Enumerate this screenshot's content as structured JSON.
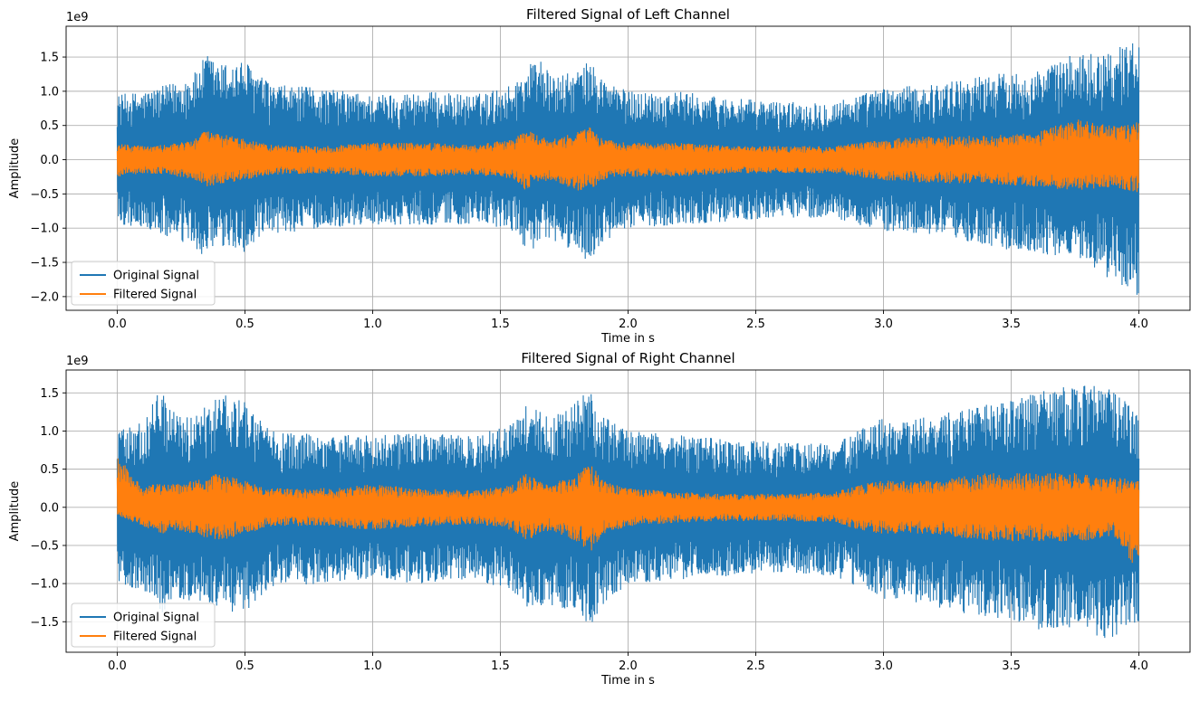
{
  "chart_data": [
    {
      "type": "line",
      "title": "Filtered Signal of Left Channel",
      "xlabel": "Time in s",
      "ylabel": "Amplitude",
      "y_offset_label": "1e9",
      "xlim": [
        -0.2,
        4.2
      ],
      "ylim": [
        -2.2,
        1.95
      ],
      "x_ticks": [
        0.0,
        0.5,
        1.0,
        1.5,
        2.0,
        2.5,
        3.0,
        3.5,
        4.0
      ],
      "x_tick_labels": [
        "0.0",
        "0.5",
        "1.0",
        "1.5",
        "2.0",
        "2.5",
        "3.0",
        "3.5",
        "4.0"
      ],
      "y_ticks": [
        1.5,
        1.0,
        0.5,
        0.0,
        -0.5,
        -1.0,
        -1.5,
        -2.0
      ],
      "y_tick_labels": [
        "1.5",
        "1.0",
        "0.5",
        "0.0",
        "−0.5",
        "−1.0",
        "−1.5",
        "−2.0"
      ],
      "grid": true,
      "legend_position": "lower-left",
      "series": [
        {
          "name": "Original Signal",
          "color": "#1f77b4",
          "x": [
            0.0,
            0.1,
            0.2,
            0.3,
            0.35,
            0.4,
            0.5,
            0.6,
            0.8,
            1.0,
            1.2,
            1.4,
            1.55,
            1.6,
            1.65,
            1.7,
            1.8,
            1.85,
            1.9,
            2.0,
            2.2,
            2.4,
            2.6,
            2.8,
            2.9,
            3.0,
            3.2,
            3.4,
            3.6,
            3.75,
            3.9,
            4.0
          ],
          "upper": [
            0.95,
            1.0,
            1.1,
            1.25,
            1.55,
            1.4,
            1.45,
            1.1,
            1.05,
            0.95,
            1.0,
            0.95,
            1.1,
            1.35,
            1.55,
            1.2,
            1.3,
            1.45,
            1.2,
            1.0,
            1.0,
            0.9,
            0.85,
            0.85,
            0.95,
            1.05,
            1.1,
            1.25,
            1.3,
            1.55,
            1.6,
            1.8
          ],
          "lower": [
            -0.95,
            -1.0,
            -1.15,
            -1.3,
            -1.45,
            -1.3,
            -1.35,
            -1.1,
            -1.0,
            -0.95,
            -0.95,
            -0.95,
            -1.05,
            -1.3,
            -1.3,
            -1.2,
            -1.35,
            -1.5,
            -1.25,
            -1.0,
            -0.95,
            -0.9,
            -0.85,
            -0.85,
            -0.95,
            -1.05,
            -1.1,
            -1.25,
            -1.4,
            -1.4,
            -1.8,
            -2.0
          ]
        },
        {
          "name": "Filtered Signal",
          "color": "#ff7f0e",
          "x": [
            0.0,
            0.1,
            0.2,
            0.3,
            0.35,
            0.4,
            0.5,
            0.6,
            0.8,
            1.0,
            1.2,
            1.4,
            1.55,
            1.6,
            1.65,
            1.7,
            1.8,
            1.85,
            1.9,
            2.0,
            2.2,
            2.4,
            2.6,
            2.8,
            2.9,
            3.0,
            3.2,
            3.4,
            3.6,
            3.75,
            3.9,
            4.0
          ],
          "upper": [
            0.25,
            0.2,
            0.22,
            0.3,
            0.45,
            0.4,
            0.3,
            0.22,
            0.2,
            0.25,
            0.25,
            0.22,
            0.3,
            0.45,
            0.35,
            0.3,
            0.4,
            0.48,
            0.3,
            0.25,
            0.25,
            0.2,
            0.2,
            0.2,
            0.25,
            0.3,
            0.35,
            0.35,
            0.4,
            0.6,
            0.5,
            0.55
          ],
          "lower": [
            -0.25,
            -0.2,
            -0.22,
            -0.3,
            -0.4,
            -0.35,
            -0.3,
            -0.22,
            -0.2,
            -0.25,
            -0.25,
            -0.22,
            -0.3,
            -0.45,
            -0.35,
            -0.3,
            -0.45,
            -0.45,
            -0.3,
            -0.25,
            -0.25,
            -0.2,
            -0.2,
            -0.2,
            -0.25,
            -0.3,
            -0.35,
            -0.35,
            -0.4,
            -0.45,
            -0.4,
            -0.5
          ]
        }
      ]
    },
    {
      "type": "line",
      "title": "Filtered Signal of Right Channel",
      "xlabel": "Time in s",
      "ylabel": "Amplitude",
      "y_offset_label": "1e9",
      "xlim": [
        -0.2,
        4.2
      ],
      "ylim": [
        -1.9,
        1.8
      ],
      "x_ticks": [
        0.0,
        0.5,
        1.0,
        1.5,
        2.0,
        2.5,
        3.0,
        3.5,
        4.0
      ],
      "x_tick_labels": [
        "0.0",
        "0.5",
        "1.0",
        "1.5",
        "2.0",
        "2.5",
        "3.0",
        "3.5",
        "4.0"
      ],
      "y_ticks": [
        1.5,
        1.0,
        0.5,
        0.0,
        -0.5,
        -1.0,
        -1.5
      ],
      "y_tick_labels": [
        "1.5",
        "1.0",
        "0.5",
        "0.0",
        "−0.5",
        "−1.0",
        "−1.5"
      ],
      "grid": true,
      "legend_position": "lower-left",
      "series": [
        {
          "name": "Original Signal",
          "color": "#1f77b4",
          "x": [
            0.0,
            0.1,
            0.18,
            0.2,
            0.3,
            0.4,
            0.5,
            0.6,
            0.8,
            1.0,
            1.2,
            1.4,
            1.55,
            1.6,
            1.65,
            1.7,
            1.8,
            1.85,
            1.9,
            2.0,
            2.2,
            2.4,
            2.6,
            2.8,
            2.9,
            3.0,
            3.2,
            3.4,
            3.6,
            3.75,
            3.9,
            4.0
          ],
          "upper": [
            1.15,
            1.1,
            1.65,
            1.3,
            1.2,
            1.5,
            1.4,
            1.0,
            0.95,
            0.95,
            1.0,
            0.95,
            1.1,
            1.35,
            1.3,
            1.2,
            1.4,
            1.55,
            1.2,
            1.0,
            0.95,
            0.9,
            0.85,
            0.85,
            1.0,
            1.2,
            1.2,
            1.35,
            1.5,
            1.65,
            1.55,
            1.2
          ],
          "lower": [
            -1.0,
            -1.1,
            -1.4,
            -1.3,
            -1.2,
            -1.35,
            -1.4,
            -1.05,
            -1.0,
            -0.95,
            -1.0,
            -0.95,
            -1.1,
            -1.35,
            -1.3,
            -1.3,
            -1.45,
            -1.6,
            -1.3,
            -1.0,
            -0.95,
            -0.9,
            -0.85,
            -0.9,
            -1.05,
            -1.2,
            -1.3,
            -1.45,
            -1.6,
            -1.6,
            -1.75,
            -1.5
          ]
        },
        {
          "name": "Filtered Signal",
          "color": "#ff7f0e",
          "x": [
            0.0,
            0.1,
            0.18,
            0.2,
            0.3,
            0.4,
            0.5,
            0.6,
            0.8,
            1.0,
            1.2,
            1.4,
            1.55,
            1.6,
            1.65,
            1.7,
            1.8,
            1.85,
            1.9,
            2.0,
            2.2,
            2.4,
            2.6,
            2.8,
            2.9,
            3.0,
            3.2,
            3.4,
            3.6,
            3.75,
            3.9,
            4.0
          ],
          "upper": [
            0.7,
            0.25,
            0.35,
            0.3,
            0.35,
            0.45,
            0.35,
            0.25,
            0.25,
            0.3,
            0.25,
            0.22,
            0.3,
            0.45,
            0.35,
            0.3,
            0.45,
            0.6,
            0.35,
            0.25,
            0.2,
            0.18,
            0.18,
            0.2,
            0.3,
            0.35,
            0.35,
            0.45,
            0.45,
            0.45,
            0.4,
            0.35
          ],
          "lower": [
            -0.1,
            -0.25,
            -0.35,
            -0.3,
            -0.35,
            -0.45,
            -0.35,
            -0.25,
            -0.25,
            -0.3,
            -0.25,
            -0.22,
            -0.3,
            -0.45,
            -0.35,
            -0.3,
            -0.45,
            -0.6,
            -0.35,
            -0.25,
            -0.2,
            -0.18,
            -0.18,
            -0.2,
            -0.3,
            -0.35,
            -0.35,
            -0.45,
            -0.45,
            -0.45,
            -0.4,
            -0.9
          ]
        }
      ]
    }
  ]
}
